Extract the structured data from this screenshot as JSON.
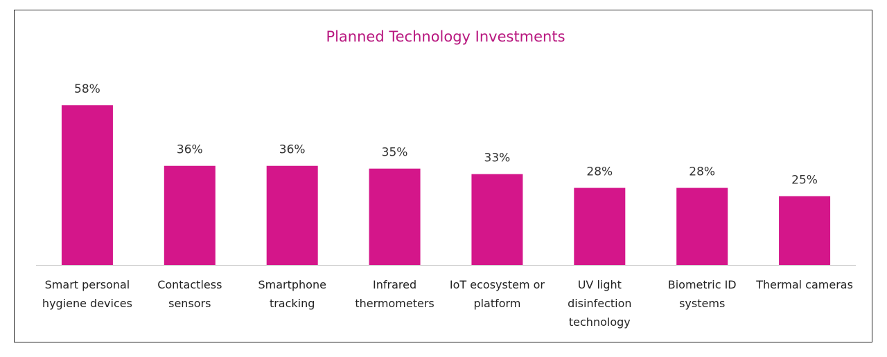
{
  "chart_data": {
    "type": "bar",
    "title": "Planned Technology Investments",
    "categories": [
      "Smart personal hygiene devices",
      "Contactless sensors",
      "Smartphone tracking",
      "Infrared thermometers",
      "IoT ecosystem or platform",
      "UV light disinfection technology",
      "Biometric ID systems",
      "Thermal cameras"
    ],
    "values": [
      58,
      36,
      36,
      35,
      33,
      28,
      28,
      25
    ],
    "value_labels": [
      "58%",
      "36%",
      "36%",
      "35%",
      "33%",
      "28%",
      "28%",
      "25%"
    ],
    "color": "#d4168a"
  }
}
